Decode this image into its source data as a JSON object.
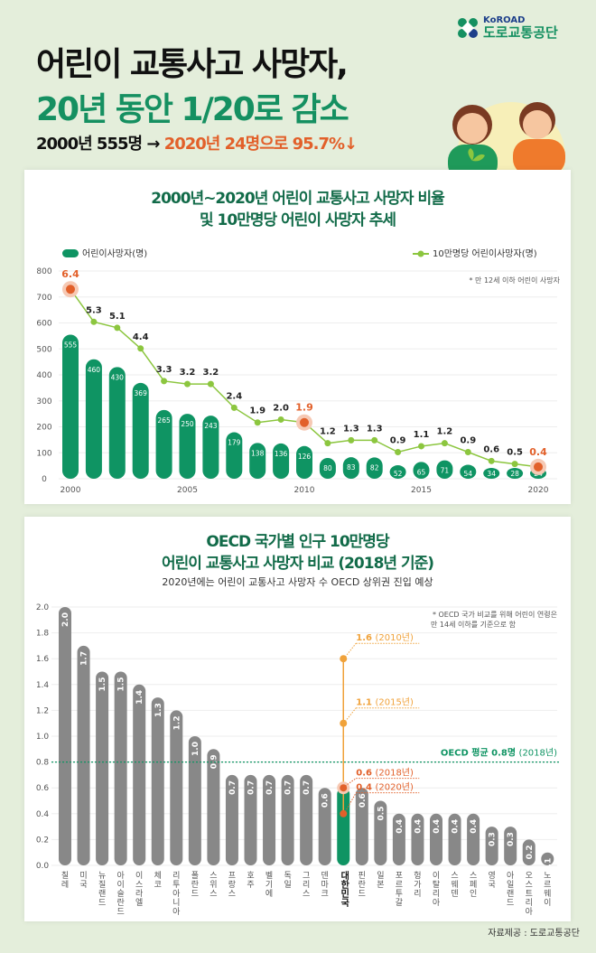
{
  "header": {
    "title_line1": "어린이 교통사고 사망자,",
    "title_line2": "20년 동안 1/20로 감소",
    "summary_black": "2000년 555명 →",
    "summary_orange": "2020년 24명으로 95.7%↓"
  },
  "logo": {
    "en": "KoROAD",
    "kr": "도로교통공단"
  },
  "colors": {
    "green": "#0f9463",
    "orange": "#e2602a",
    "line": "#8cc63f",
    "gray": "#888888",
    "amber": "#f0a23a"
  },
  "chart_data": [
    {
      "type": "bar+line",
      "title_line1": "2000년~2020년 어린이 교통사고 사망자 비율",
      "title_line2": "및 10만명당 어린이 사망자 추세",
      "legend_bar": "어린이사망자(명)",
      "legend_line": "10만명당 어린이사망자(명)",
      "note": "* 만 12세 이하 어린이 사망자",
      "ylim": [
        0,
        800
      ],
      "yticks": [
        "0",
        "100",
        "200",
        "300",
        "400",
        "500",
        "600",
        "700",
        "800"
      ],
      "xticks": [
        "2000",
        "2005",
        "2010",
        "2015",
        "2020"
      ],
      "years": [
        2000,
        2001,
        2002,
        2003,
        2004,
        2005,
        2006,
        2007,
        2008,
        2009,
        2010,
        2011,
        2012,
        2013,
        2014,
        2015,
        2016,
        2017,
        2018,
        2019,
        2020
      ],
      "deaths": [
        555,
        460,
        430,
        369,
        265,
        250,
        243,
        179,
        138,
        136,
        126,
        80,
        83,
        82,
        52,
        65,
        71,
        54,
        34,
        28,
        24
      ],
      "rate": [
        6.4,
        5.3,
        5.1,
        4.4,
        3.3,
        3.2,
        3.2,
        2.4,
        1.9,
        2.0,
        1.9,
        1.2,
        1.3,
        1.3,
        0.9,
        1.1,
        1.2,
        0.9,
        0.6,
        0.5,
        0.4
      ],
      "highlight_years": [
        2000,
        2010,
        2020
      ]
    },
    {
      "type": "bar",
      "title_line1": "OECD 국가별 인구 10만명당",
      "title_line2": "어린이 교통사고 사망자 비교 (2018년 기준)",
      "subtitle": "2020년에는 어린이 교통사고 사망자 수 OECD 상위권 진입 예상",
      "note_line1": "* OECD 국가 비교를 위해 어린이 연령은",
      "note_line2": "만 14세 이하를 기준으로 함",
      "ylim": [
        0,
        2.0
      ],
      "yticks": [
        "0.0",
        "0.2",
        "0.4",
        "0.6",
        "0.8",
        "1.0",
        "1.2",
        "1.4",
        "1.6",
        "1.8",
        "2.0"
      ],
      "categories": [
        "칠레",
        "미국",
        "뉴질랜드",
        "아이슬란드",
        "이스라엘",
        "체코",
        "리투아니아",
        "폴란드",
        "스위스",
        "프랑스",
        "호주",
        "벨기에",
        "독일",
        "그리스",
        "덴마크",
        "대한민국",
        "핀란드",
        "일본",
        "포르투갈",
        "헝가리",
        "이탈리아",
        "스웨덴",
        "스페인",
        "영국",
        "아일랜드",
        "오스트리아",
        "노르웨이"
      ],
      "values": [
        2.0,
        1.7,
        1.5,
        1.5,
        1.4,
        1.3,
        1.2,
        1.0,
        0.9,
        0.7,
        0.7,
        0.7,
        0.7,
        0.7,
        0.6,
        0.6,
        0.6,
        0.5,
        0.4,
        0.4,
        0.4,
        0.4,
        0.4,
        0.3,
        0.3,
        0.2,
        0.1
      ],
      "highlight": "대한민국",
      "oecd_avg": {
        "value": 0.8,
        "label_bold": "OECD 평균 0.8명",
        "label_year": "(2018년)"
      },
      "korea_trend": [
        {
          "value": 1.6,
          "label": "1.6",
          "year": "(2010년)"
        },
        {
          "value": 1.1,
          "label": "1.1",
          "year": "(2015년)"
        },
        {
          "value": 0.6,
          "label": "0.6",
          "year": "(2018년)"
        },
        {
          "value": 0.4,
          "label": "0.4",
          "year": "(2020년)"
        }
      ]
    }
  ],
  "footer": "자료제공 : 도로교통공단"
}
